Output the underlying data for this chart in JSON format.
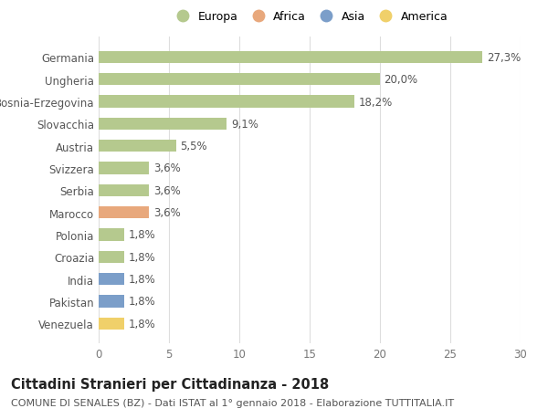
{
  "countries": [
    "Germania",
    "Ungheria",
    "Bosnia-Erzegovina",
    "Slovacchia",
    "Austria",
    "Svizzera",
    "Serbia",
    "Marocco",
    "Polonia",
    "Croazia",
    "India",
    "Pakistan",
    "Venezuela"
  ],
  "values": [
    27.3,
    20.0,
    18.2,
    9.1,
    5.5,
    3.6,
    3.6,
    3.6,
    1.8,
    1.8,
    1.8,
    1.8,
    1.8
  ],
  "labels": [
    "27,3%",
    "20,0%",
    "18,2%",
    "9,1%",
    "5,5%",
    "3,6%",
    "3,6%",
    "3,6%",
    "1,8%",
    "1,8%",
    "1,8%",
    "1,8%",
    "1,8%"
  ],
  "colors": [
    "#b5c98e",
    "#b5c98e",
    "#b5c98e",
    "#b5c98e",
    "#b5c98e",
    "#b5c98e",
    "#b5c98e",
    "#e8a87c",
    "#b5c98e",
    "#b5c98e",
    "#7b9ec9",
    "#7b9ec9",
    "#f0d06a"
  ],
  "legend_labels": [
    "Europa",
    "Africa",
    "Asia",
    "America"
  ],
  "legend_colors": [
    "#b5c98e",
    "#e8a87c",
    "#7b9ec9",
    "#f0d06a"
  ],
  "xlim": [
    0,
    30
  ],
  "xticks": [
    0,
    5,
    10,
    15,
    20,
    25,
    30
  ],
  "title": "Cittadini Stranieri per Cittadinanza - 2018",
  "subtitle": "COMUNE DI SENALES (BZ) - Dati ISTAT al 1° gennaio 2018 - Elaborazione TUTTITALIA.IT",
  "background_color": "#ffffff",
  "grid_color": "#dddddd",
  "bar_height": 0.55,
  "label_fontsize": 8.5,
  "tick_fontsize": 8.5,
  "title_fontsize": 10.5,
  "subtitle_fontsize": 8
}
